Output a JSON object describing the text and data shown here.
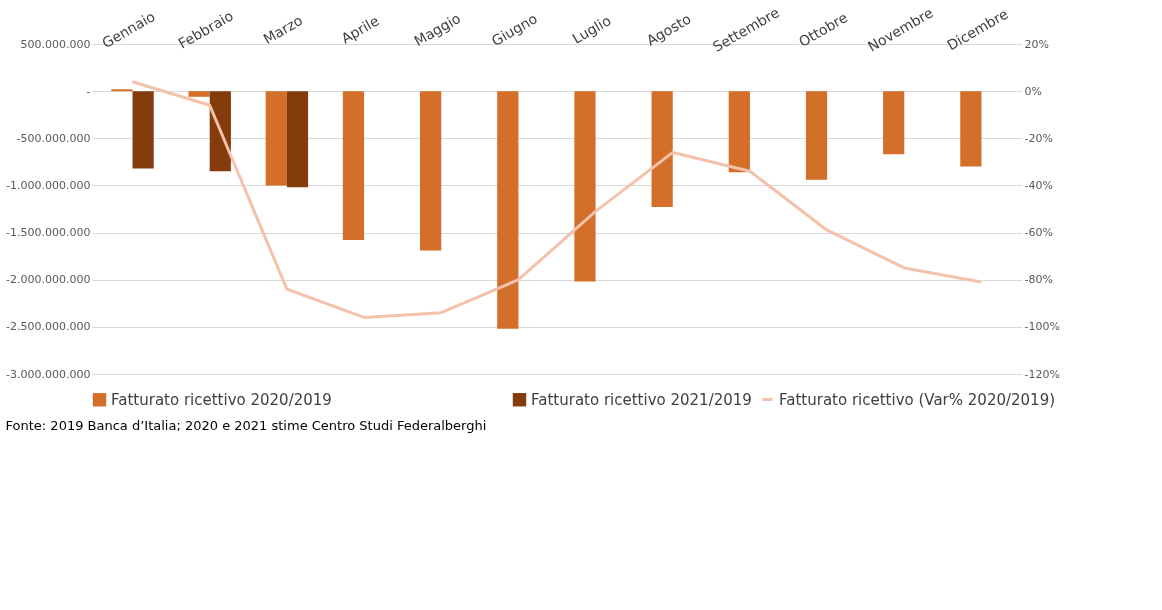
{
  "chart_data": {
    "type": "bar",
    "categories": [
      "Gennaio",
      "Febbraio",
      "Marzo",
      "Aprile",
      "Maggio",
      "Giugno",
      "Luglio",
      "Agosto",
      "Settembre",
      "Ottobre",
      "Novembre",
      "Dicembre"
    ],
    "series": [
      {
        "name": "Fatturato ricettivo 2020/2019",
        "color": "#d46f2a",
        "values": [
          20000000,
          -60000000,
          -1000000000,
          -1580000000,
          -1690000000,
          -2520000000,
          -2020000000,
          -1230000000,
          -860000000,
          -940000000,
          -670000000,
          -800000000
        ]
      },
      {
        "name": "Fatturato ricettivo 2021/2019",
        "color": "#843c0c",
        "values": [
          -820000000,
          -850000000,
          -1020000000,
          null,
          null,
          null,
          null,
          null,
          null,
          null,
          null,
          null
        ]
      },
      {
        "name": "Fatturato ricettivo (Var% 2020/2019)",
        "color": "#f4c1aa",
        "type": "line",
        "axis": "y2",
        "values": [
          4,
          -6,
          -84,
          -96,
          -94,
          -80,
          -51,
          -26,
          -34,
          -59,
          -75,
          -81
        ]
      }
    ],
    "ylim": [
      -3000000000,
      500000000
    ],
    "yticks": [
      {
        "value": 500000000,
        "label": "500.000.000"
      },
      {
        "value": 0,
        "label": "-"
      },
      {
        "value": -500000000,
        "label": "-500.000.000"
      },
      {
        "value": -1000000000,
        "label": "-1.000.000.000"
      },
      {
        "value": -1500000000,
        "label": "-1.500.000.000"
      },
      {
        "value": -2000000000,
        "label": "-2.000.000.000"
      },
      {
        "value": -2500000000,
        "label": "-2.500.000.000"
      },
      {
        "value": -3000000000,
        "label": "-3.000.000.000"
      }
    ],
    "y2lim": [
      -120,
      20
    ],
    "y2ticks": [
      {
        "value": 20,
        "label": "20%"
      },
      {
        "value": 0,
        "label": "0%"
      },
      {
        "value": -20,
        "label": "-20%"
      },
      {
        "value": -40,
        "label": "-40%"
      },
      {
        "value": -60,
        "label": "-60%"
      },
      {
        "value": -80,
        "label": "-80%"
      },
      {
        "value": -100,
        "label": "-100%"
      },
      {
        "value": -120,
        "label": "-120%"
      }
    ],
    "grid": "y",
    "legend": "bottom",
    "annotations": [
      "Fonte: 2019 Banca d’Italia; 2020 e 2021 stime Centro Studi Federalberghi"
    ]
  }
}
